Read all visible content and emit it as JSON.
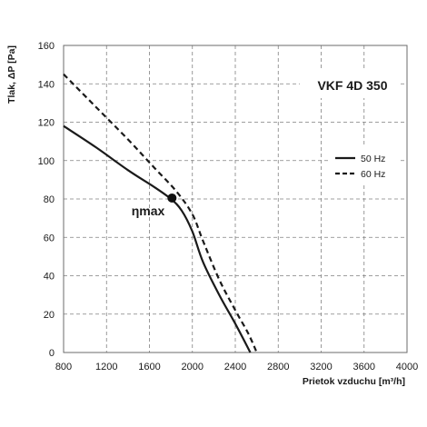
{
  "chart_data": {
    "type": "line",
    "title": "VKF 4D 350",
    "xlabel": "Prietok vzduchu  [m³/h]",
    "ylabel": "Tlak, ΔP [Pa]",
    "xlim": [
      800,
      4000
    ],
    "ylim": [
      0,
      160
    ],
    "x_ticks": [
      800,
      1200,
      1600,
      2000,
      2400,
      2800,
      3200,
      3600,
      4000
    ],
    "y_ticks": [
      0,
      20,
      40,
      60,
      80,
      100,
      120,
      140,
      160
    ],
    "grid": true,
    "legend_position": "right",
    "series": [
      {
        "name": "50 Hz",
        "style": "solid",
        "color": "#1a1a1a",
        "points": [
          [
            800,
            118
          ],
          [
            1100,
            107
          ],
          [
            1400,
            95
          ],
          [
            1650,
            86
          ],
          [
            1800,
            80
          ],
          [
            1900,
            74
          ],
          [
            2000,
            63
          ],
          [
            2100,
            47
          ],
          [
            2250,
            30
          ],
          [
            2400,
            15
          ],
          [
            2540,
            0
          ]
        ]
      },
      {
        "name": "60 Hz",
        "style": "dashed",
        "color": "#1a1a1a",
        "points": [
          [
            800,
            145
          ],
          [
            1100,
            128
          ],
          [
            1400,
            111
          ],
          [
            1650,
            96
          ],
          [
            1850,
            84
          ],
          [
            2000,
            72
          ],
          [
            2100,
            58
          ],
          [
            2250,
            38
          ],
          [
            2400,
            22
          ],
          [
            2520,
            10
          ],
          [
            2600,
            0
          ]
        ]
      }
    ],
    "marker": {
      "label": "ηmax",
      "x": 1810,
      "y": 80.5
    }
  }
}
